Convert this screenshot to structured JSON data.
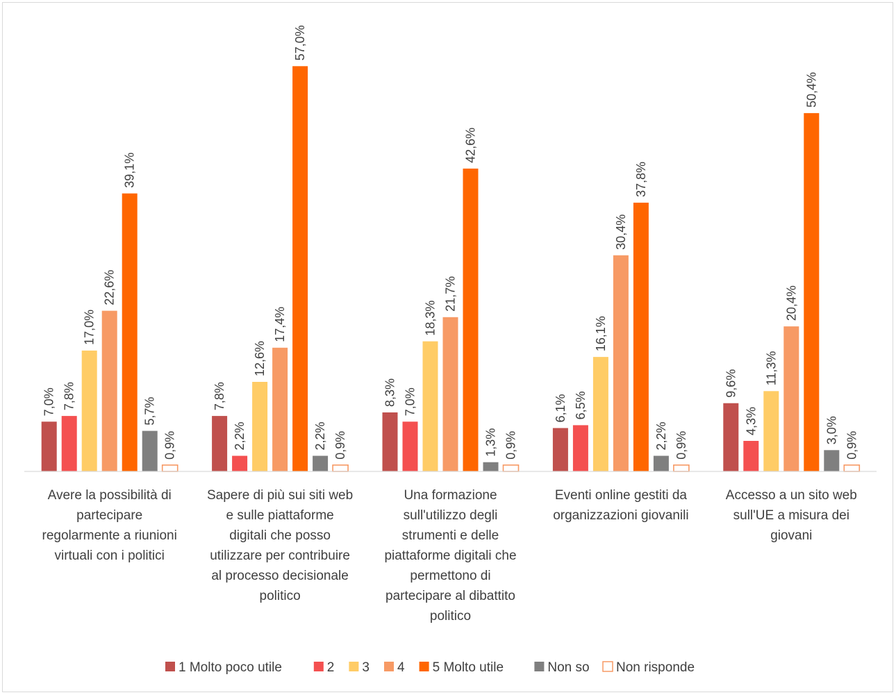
{
  "chart_data": {
    "type": "bar",
    "title": "",
    "xlabel": "",
    "ylabel": "",
    "ylim": [
      0,
      60
    ],
    "grid": false,
    "legend_position": "bottom",
    "categories": [
      "Avere la possibilità di partecipare regolarmente a riunioni virtuali con i politici",
      "Sapere di più sui siti web e sulle piattaforme digitali che posso utilizzare per contribuire al processo decisionale politico",
      "Una formazione sull'utilizzo degli strumenti e delle piattaforme digitali che permettono di partecipare al dibattito politico",
      "Eventi online gestiti da organizzazioni giovanili",
      "Accesso a un sito web sull'UE a misura dei giovani"
    ],
    "category_lines": [
      [
        "Avere la possibilità di",
        "partecipare",
        "regolarmente a riunioni",
        "virtuali con i politici"
      ],
      [
        "Sapere di più sui siti web",
        "e sulle piattaforme",
        "digitali che posso",
        "utilizzare per contribuire",
        "al processo decisionale",
        "politico"
      ],
      [
        "Una formazione",
        "sull'utilizzo degli",
        "strumenti e delle",
        "piattaforme digitali che",
        "permettono di",
        "partecipare al dibattito",
        "politico"
      ],
      [
        "Eventi online gestiti da",
        "organizzazioni giovanili"
      ],
      [
        "Accesso a un sito web",
        "sull'UE a misura dei",
        "giovani"
      ]
    ],
    "series": [
      {
        "name": "1 Molto poco utile",
        "color": "#c0504d",
        "outline": false,
        "values": [
          7.0,
          7.8,
          8.3,
          6.1,
          9.6
        ],
        "labels": [
          "7,0%",
          "7,8%",
          "8,3%",
          "6,1%",
          "9,6%"
        ]
      },
      {
        "name": "2",
        "color": "#f45050",
        "outline": false,
        "values": [
          7.8,
          2.2,
          7.0,
          6.5,
          4.3
        ],
        "labels": [
          "7,8%",
          "2,2%",
          "7,0%",
          "6,5%",
          "4,3%"
        ]
      },
      {
        "name": "3",
        "color": "#ffcc66",
        "outline": false,
        "values": [
          17.0,
          12.6,
          18.3,
          16.1,
          11.3
        ],
        "labels": [
          "17,0%",
          "12,6%",
          "18,3%",
          "16,1%",
          "11,3%"
        ]
      },
      {
        "name": "4",
        "color": "#f79a65",
        "outline": false,
        "values": [
          22.6,
          17.4,
          21.7,
          30.4,
          20.4
        ],
        "labels": [
          "22,6%",
          "17,4%",
          "21,7%",
          "30,4%",
          "20,4%"
        ]
      },
      {
        "name": "5 Molto utile",
        "color": "#ff6600",
        "outline": false,
        "values": [
          39.1,
          57.0,
          42.6,
          37.8,
          50.4
        ],
        "labels": [
          "39,1%",
          "57,0%",
          "42,6%",
          "37,8%",
          "50,4%"
        ]
      },
      {
        "name": "Non so",
        "color": "#7f7f7f",
        "outline": false,
        "values": [
          5.7,
          2.2,
          1.3,
          2.2,
          3.0
        ],
        "labels": [
          "5,7%",
          "2,2%",
          "1,3%",
          "2,2%",
          "3,0%"
        ]
      },
      {
        "name": "Non risponde",
        "color": "#f79a65",
        "outline": true,
        "values": [
          0.9,
          0.9,
          0.9,
          0.9,
          0.9
        ],
        "labels": [
          "0,9%",
          "0,9%",
          "0,9%",
          "0,9%",
          "0,9%"
        ]
      }
    ]
  }
}
